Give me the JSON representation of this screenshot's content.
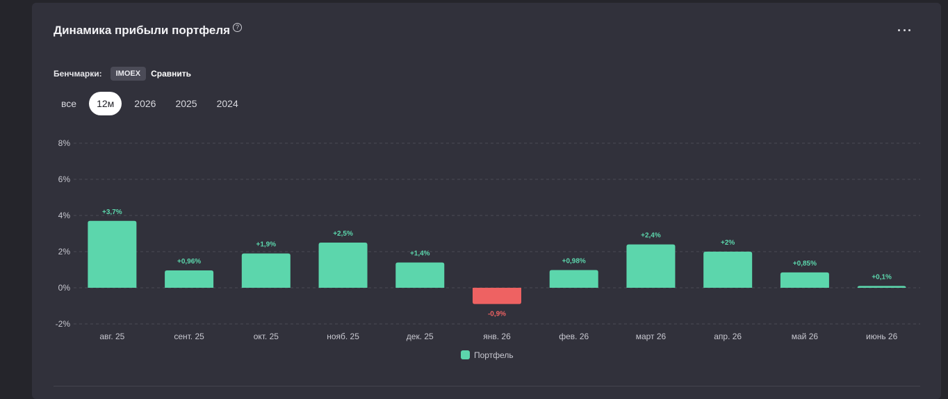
{
  "header": {
    "title": "Динамика прибыли портфеля",
    "help_icon": "?"
  },
  "benchmarks": {
    "label": "Бенчмарки:",
    "chip": "IMOEX",
    "compare": "Сравнить"
  },
  "periods": [
    "все",
    "12м",
    "2026",
    "2025",
    "2024"
  ],
  "active_period": "12м",
  "chart_data": {
    "type": "bar",
    "categories": [
      "авг. 25",
      "сент. 25",
      "окт. 25",
      "нояб. 25",
      "дек. 25",
      "янв. 26",
      "фев. 26",
      "март 26",
      "апр. 26",
      "май 26",
      "июнь 26"
    ],
    "series": [
      {
        "name": "Портфель",
        "values": [
          3.7,
          0.96,
          1.9,
          2.5,
          1.4,
          -0.9,
          0.98,
          2.4,
          2.0,
          0.85,
          0.1
        ],
        "labels": [
          "+3,7%",
          "+0,96%",
          "+1,9%",
          "+2,5%",
          "+1,4%",
          "-0,9%",
          "+0,98%",
          "+2,4%",
          "+2%",
          "+0,85%",
          "+0,1%"
        ]
      }
    ],
    "yticks": [
      "8%",
      "6%",
      "4%",
      "2%",
      "0%",
      "-2%"
    ],
    "ytick_values": [
      8,
      6,
      4,
      2,
      0,
      -2
    ],
    "ylim": [
      -2,
      8
    ],
    "grid": true,
    "legend_position": "bottom-center",
    "colors": {
      "positive": "#5cd6ac",
      "negative": "#ee6262",
      "grid": "#4a4a55",
      "tick": "#c8c8d0"
    }
  }
}
